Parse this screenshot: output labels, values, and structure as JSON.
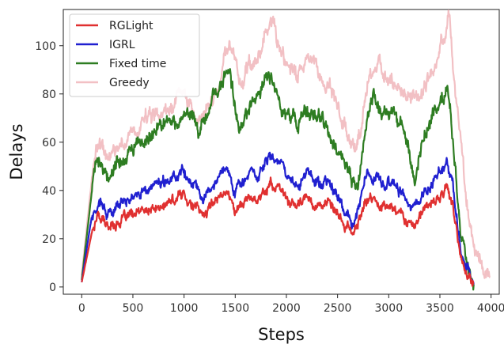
{
  "chart_data": {
    "type": "line",
    "xlabel": "Steps",
    "ylabel": "Delays",
    "xlim": [
      -180,
      4080
    ],
    "ylim": [
      -3,
      115
    ],
    "xticks": [
      0,
      500,
      1000,
      1500,
      2000,
      2500,
      3000,
      3500,
      4000
    ],
    "yticks": [
      0,
      20,
      40,
      60,
      80,
      100
    ],
    "grid": false,
    "legend_position": "top-left",
    "series": [
      {
        "name": "RGLight",
        "color": "#e03030",
        "points": [
          [
            0,
            2
          ],
          [
            100,
            23
          ],
          [
            160,
            30
          ],
          [
            250,
            25
          ],
          [
            400,
            28
          ],
          [
            600,
            31
          ],
          [
            800,
            33
          ],
          [
            1000,
            39
          ],
          [
            1100,
            33
          ],
          [
            1200,
            30
          ],
          [
            1300,
            36
          ],
          [
            1400,
            41
          ],
          [
            1500,
            32
          ],
          [
            1600,
            36
          ],
          [
            1750,
            38
          ],
          [
            1850,
            43
          ],
          [
            2000,
            37
          ],
          [
            2100,
            33
          ],
          [
            2200,
            37
          ],
          [
            2300,
            34
          ],
          [
            2400,
            35
          ],
          [
            2500,
            29
          ],
          [
            2650,
            22
          ],
          [
            2800,
            37
          ],
          [
            2950,
            34
          ],
          [
            3050,
            33
          ],
          [
            3150,
            29
          ],
          [
            3250,
            26
          ],
          [
            3400,
            34
          ],
          [
            3500,
            37
          ],
          [
            3570,
            42
          ],
          [
            3620,
            35
          ],
          [
            3700,
            12
          ],
          [
            3800,
            3
          ],
          [
            3830,
            1
          ]
        ]
      },
      {
        "name": "IGRL",
        "color": "#2020d0",
        "points": [
          [
            0,
            2
          ],
          [
            100,
            30
          ],
          [
            160,
            37
          ],
          [
            250,
            31
          ],
          [
            400,
            35
          ],
          [
            600,
            40
          ],
          [
            800,
            42
          ],
          [
            1000,
            48
          ],
          [
            1100,
            41
          ],
          [
            1200,
            38
          ],
          [
            1300,
            45
          ],
          [
            1400,
            52
          ],
          [
            1500,
            41
          ],
          [
            1600,
            45
          ],
          [
            1750,
            48
          ],
          [
            1850,
            54
          ],
          [
            2000,
            48
          ],
          [
            2100,
            42
          ],
          [
            2200,
            47
          ],
          [
            2300,
            43
          ],
          [
            2400,
            44
          ],
          [
            2500,
            37
          ],
          [
            2650,
            26
          ],
          [
            2800,
            47
          ],
          [
            2950,
            44
          ],
          [
            3050,
            43
          ],
          [
            3150,
            37
          ],
          [
            3250,
            33
          ],
          [
            3400,
            43
          ],
          [
            3500,
            47
          ],
          [
            3570,
            54
          ],
          [
            3620,
            43
          ],
          [
            3700,
            15
          ],
          [
            3800,
            3
          ],
          [
            3830,
            1
          ]
        ]
      },
      {
        "name": "Fixed time",
        "color": "#2e7d22",
        "points": [
          [
            0,
            3
          ],
          [
            100,
            40
          ],
          [
            140,
            55
          ],
          [
            200,
            52
          ],
          [
            250,
            46
          ],
          [
            350,
            52
          ],
          [
            500,
            56
          ],
          [
            600,
            60
          ],
          [
            700,
            63
          ],
          [
            800,
            70
          ],
          [
            900,
            67
          ],
          [
            950,
            66
          ],
          [
            1000,
            74
          ],
          [
            1100,
            70
          ],
          [
            1150,
            63
          ],
          [
            1200,
            70
          ],
          [
            1300,
            78
          ],
          [
            1400,
            86
          ],
          [
            1450,
            89
          ],
          [
            1500,
            72
          ],
          [
            1550,
            65
          ],
          [
            1600,
            73
          ],
          [
            1700,
            78
          ],
          [
            1800,
            86
          ],
          [
            1850,
            88
          ],
          [
            1950,
            73
          ],
          [
            2050,
            71
          ],
          [
            2100,
            65
          ],
          [
            2200,
            74
          ],
          [
            2300,
            68
          ],
          [
            2350,
            70
          ],
          [
            2450,
            58
          ],
          [
            2550,
            52
          ],
          [
            2650,
            42
          ],
          [
            2700,
            41
          ],
          [
            2800,
            73
          ],
          [
            2850,
            79
          ],
          [
            2950,
            70
          ],
          [
            3050,
            72
          ],
          [
            3150,
            65
          ],
          [
            3200,
            55
          ],
          [
            3250,
            45
          ],
          [
            3350,
            63
          ],
          [
            3450,
            72
          ],
          [
            3500,
            75
          ],
          [
            3570,
            82
          ],
          [
            3600,
            72
          ],
          [
            3650,
            50
          ],
          [
            3700,
            25
          ],
          [
            3780,
            8
          ],
          [
            3830,
            1
          ]
        ]
      },
      {
        "name": "Greedy",
        "color": "#f2c0c4",
        "points": [
          [
            0,
            5
          ],
          [
            100,
            45
          ],
          [
            140,
            60
          ],
          [
            200,
            56
          ],
          [
            250,
            53
          ],
          [
            350,
            60
          ],
          [
            500,
            63
          ],
          [
            600,
            68
          ],
          [
            700,
            71
          ],
          [
            800,
            73
          ],
          [
            900,
            75
          ],
          [
            1000,
            81
          ],
          [
            1100,
            72
          ],
          [
            1200,
            72
          ],
          [
            1300,
            80
          ],
          [
            1400,
            94
          ],
          [
            1450,
            98
          ],
          [
            1550,
            85
          ],
          [
            1600,
            90
          ],
          [
            1700,
            95
          ],
          [
            1800,
            103
          ],
          [
            1850,
            107
          ],
          [
            1950,
            96
          ],
          [
            2050,
            90
          ],
          [
            2100,
            87
          ],
          [
            2200,
            94
          ],
          [
            2300,
            88
          ],
          [
            2400,
            85
          ],
          [
            2500,
            73
          ],
          [
            2650,
            57
          ],
          [
            2700,
            58
          ],
          [
            2800,
            85
          ],
          [
            2900,
            92
          ],
          [
            3000,
            88
          ],
          [
            3100,
            83
          ],
          [
            3200,
            80
          ],
          [
            3300,
            77
          ],
          [
            3400,
            88
          ],
          [
            3500,
            98
          ],
          [
            3550,
            103
          ],
          [
            3580,
            112
          ],
          [
            3600,
            109
          ],
          [
            3650,
            82
          ],
          [
            3700,
            60
          ],
          [
            3760,
            35
          ],
          [
            3830,
            20
          ],
          [
            3900,
            10
          ],
          [
            3960,
            6
          ],
          [
            3990,
            4
          ]
        ]
      }
    ]
  }
}
